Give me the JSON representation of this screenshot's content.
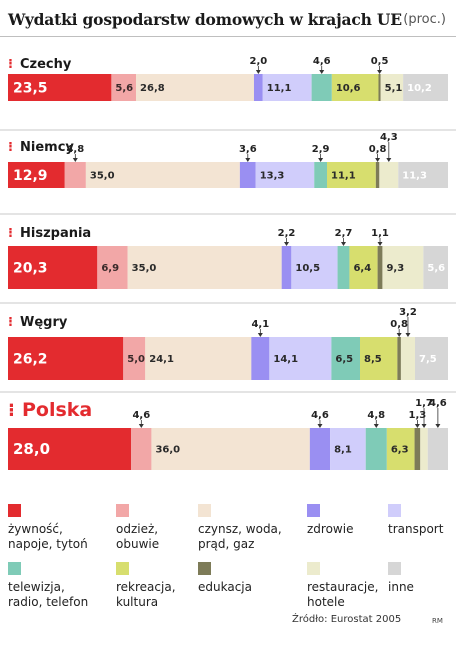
{
  "chart_data": {
    "type": "bar",
    "title": "Wydatki gospodarstw domowych w krajach UE",
    "unit": "(proc.)",
    "legend_position": "bottom",
    "categories": [
      "żywność, napoje, tytoń",
      "odzież, obuwie",
      "czynsz, woda, prąd, gaz",
      "zdrowie",
      "transport",
      "telewizja, radio, telefon",
      "rekreacja, kultura",
      "edukacja",
      "restauracje, hotele",
      "inne"
    ],
    "colors": [
      "#e32b2f",
      "#f2a7a7",
      "#f3e4d3",
      "#9a8ff2",
      "#d0cdfb",
      "#7fcbb7",
      "#d7de6e",
      "#7d7b58",
      "#ecebcd",
      "#d6d6d6"
    ],
    "series": [
      {
        "name": "Czechy",
        "highlight": false,
        "values": [
          23.5,
          5.6,
          26.8,
          2.0,
          11.1,
          4.6,
          10.6,
          0.5,
          5.1,
          10.2
        ],
        "labels": [
          "23,5",
          "5,6",
          "26,8",
          "2,0",
          "11,1",
          "4,6",
          "10,6",
          "0,5",
          "5,1",
          "10,2"
        ]
      },
      {
        "name": "Niemcy",
        "highlight": false,
        "values": [
          12.9,
          4.8,
          35.0,
          3.6,
          13.3,
          2.9,
          11.1,
          0.8,
          4.3,
          11.3
        ],
        "labels": [
          "12,9",
          "4,8",
          "35,0",
          "3,6",
          "13,3",
          "2,9",
          "11,1",
          "0,8",
          "4,3",
          "11,3"
        ]
      },
      {
        "name": "Hiszpania",
        "highlight": false,
        "values": [
          20.3,
          6.9,
          35.0,
          2.2,
          10.5,
          2.7,
          6.4,
          1.1,
          9.3,
          5.6
        ],
        "labels": [
          "20,3",
          "6,9",
          "35,0",
          "2,2",
          "10,5",
          "2,7",
          "6,4",
          "1,1",
          "9,3",
          "5,6"
        ]
      },
      {
        "name": "Węgry",
        "highlight": false,
        "values": [
          26.2,
          5.0,
          24.1,
          4.1,
          14.1,
          6.5,
          8.5,
          0.8,
          3.2,
          7.5
        ],
        "labels": [
          "26,2",
          "5,0",
          "24,1",
          "4,1",
          "14,1",
          "6,5",
          "8,5",
          "0,8",
          "3,2",
          "7,5"
        ]
      },
      {
        "name": "Polska",
        "highlight": true,
        "values": [
          28.0,
          4.6,
          36.0,
          4.6,
          8.1,
          4.8,
          6.3,
          1.3,
          1.7,
          4.6
        ],
        "labels": [
          "28,0",
          "4,6",
          "36,0",
          "4,6",
          "8,1",
          "4,8",
          "6,3",
          "1,3",
          "1,7",
          "4,6"
        ]
      }
    ]
  },
  "legend": {
    "items": [
      "żywność,\nnapoje, tytoń",
      "odzież,\nobuwie",
      "czynsz, woda,\nprąd, gaz",
      "zdrowie",
      "transport",
      "telewizja,\nradio, telefon",
      "rekreacja,\nkultura",
      "edukacja",
      "restauracje,\nhotele",
      "inne"
    ]
  },
  "source": "Źródło: Eurostat 2005",
  "credit": "RM",
  "marker_glyph": "⁝"
}
